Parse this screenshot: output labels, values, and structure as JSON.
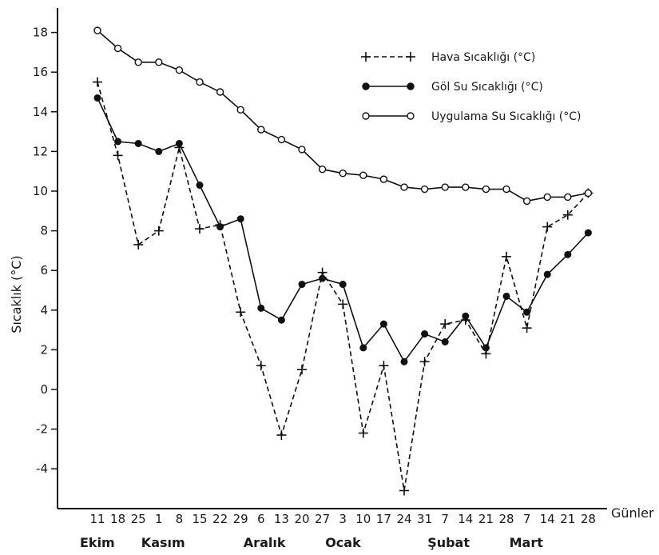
{
  "chart_data": {
    "type": "line",
    "xlabel": "Günler",
    "ylabel": "Sıcaklık (°C)",
    "ylim": [
      -6,
      20
    ],
    "yticks": [
      18,
      16,
      14,
      12,
      10,
      8,
      6,
      4,
      2,
      0,
      -2,
      -4
    ],
    "grid": false,
    "legend_position": "top-right",
    "categories": [
      "11",
      "18",
      "25",
      "1",
      "8",
      "15",
      "22",
      "29",
      "6",
      "13",
      "20",
      "27",
      "3",
      "10",
      "17",
      "24",
      "31",
      "7",
      "14",
      "21",
      "28",
      "7",
      "14",
      "21",
      "28"
    ],
    "months": [
      {
        "label": "Ekim",
        "start_index": 0
      },
      {
        "label": "Kasım",
        "start_index": 3
      },
      {
        "label": "Aralık",
        "start_index": 8
      },
      {
        "label": "Ocak",
        "start_index": 12
      },
      {
        "label": "Şubat",
        "start_index": 17
      },
      {
        "label": "Mart",
        "start_index": 21
      }
    ],
    "series": [
      {
        "name": "Hava Sıcaklığı (°C)",
        "style": "dashed-plus",
        "values": [
          15.5,
          11.8,
          7.3,
          8.0,
          12.2,
          8.1,
          8.3,
          3.9,
          1.2,
          -2.3,
          1.0,
          5.9,
          4.3,
          -2.2,
          1.2,
          -5.1,
          1.4,
          3.3,
          3.5,
          1.8,
          6.7,
          3.1,
          8.2,
          8.8,
          9.9
        ]
      },
      {
        "name": "Göl Su Sıcaklığı (°C)",
        "style": "solid-filled",
        "values": [
          14.7,
          12.5,
          12.4,
          12.0,
          12.4,
          10.3,
          8.2,
          8.6,
          4.1,
          3.5,
          5.3,
          5.6,
          5.3,
          2.1,
          3.3,
          1.4,
          2.8,
          2.4,
          3.7,
          2.1,
          4.7,
          3.9,
          5.8,
          6.8,
          7.9
        ]
      },
      {
        "name": "Uygulama Su Sıcaklığı (°C)",
        "style": "solid-open",
        "values": [
          18.1,
          17.2,
          16.5,
          16.5,
          16.1,
          15.5,
          15.0,
          14.1,
          13.1,
          12.6,
          12.1,
          11.1,
          10.9,
          10.8,
          10.6,
          10.2,
          10.1,
          10.2,
          10.2,
          10.1,
          10.1,
          9.5,
          9.7,
          9.7,
          9.9
        ]
      }
    ]
  }
}
